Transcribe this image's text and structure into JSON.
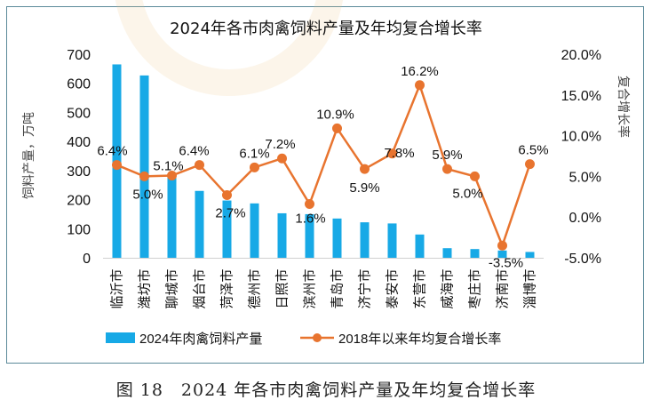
{
  "chart_data": {
    "type": "bar+line",
    "title": "2024年各市肉禽饲料产量及年均复合增长率",
    "categories": [
      "临沂市",
      "潍坊市",
      "聊城市",
      "烟台市",
      "菏泽市",
      "德州市",
      "日照市",
      "滨州市",
      "青岛市",
      "济宁市",
      "泰安市",
      "东营市",
      "威海市",
      "枣庄市",
      "济南市",
      "淄博市"
    ],
    "series": [
      {
        "name": "2024年肉禽饲料产量",
        "type": "bar",
        "axis": "left",
        "color": "#17a9e6",
        "values": [
          665,
          627,
          285,
          230,
          197,
          187,
          153,
          150,
          135,
          122,
          118,
          80,
          33,
          30,
          25,
          20
        ]
      },
      {
        "name": "2018年以来年均复合增长率",
        "type": "line",
        "axis": "right",
        "color": "#e8742f",
        "values": [
          6.4,
          5.0,
          5.1,
          6.4,
          2.7,
          6.1,
          7.2,
          1.6,
          10.9,
          5.9,
          7.8,
          16.2,
          5.9,
          5.0,
          -3.5,
          6.5
        ],
        "labels": [
          "6.4%",
          "5.0%",
          "5.1%",
          "6.4%",
          "2.7%",
          "6.1%",
          "7.2%",
          "1.6%",
          "10.9%",
          "5.9%",
          "7.8%",
          "16.2%",
          "5.9%",
          "5.0%",
          "-3.5%",
          "6.5%"
        ]
      }
    ],
    "ylabel": "饲料产量，万吨",
    "ylim": [
      0,
      700
    ],
    "yticks": [
      "700",
      "600",
      "500",
      "400",
      "300",
      "200",
      "100",
      "0"
    ],
    "y2label": "复合增长率",
    "y2lim": [
      -5.0,
      20.0
    ],
    "y2ticks": [
      "20.0%",
      "15.0%",
      "10.0%",
      "5.0%",
      "0.0%",
      "-5.0%"
    ],
    "legend_position": "bottom",
    "grid": false
  },
  "caption": "图 18　2024 年各市肉禽饲料产量及年均复合增长率"
}
